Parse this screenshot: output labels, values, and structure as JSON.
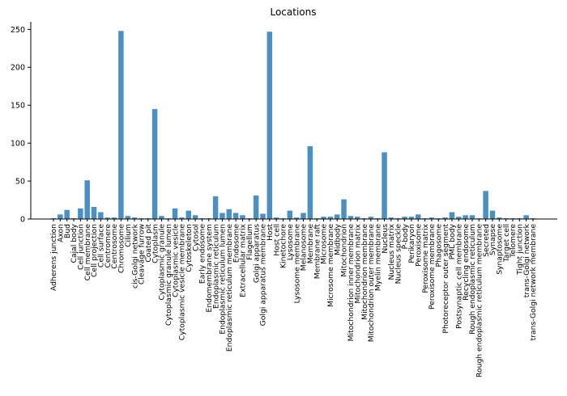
{
  "chart_data": {
    "type": "bar",
    "title": "Locations",
    "xlabel": "",
    "ylabel": "",
    "ylim": [
      0,
      260
    ],
    "yticks": [
      0,
      50,
      100,
      150,
      200,
      250
    ],
    "grid": false,
    "bar_color": "#4a90c2",
    "categories": [
      "Adherens junction",
      "Axon",
      "Bud",
      "Cajal body",
      "Cell junction",
      "Cell membrane",
      "Cell projection",
      "Cell surface",
      "Centromere",
      "Centrosome",
      "Chromosome",
      "Cilium",
      "cis-Golgi network",
      "Cleavage furrow",
      "Coated pit",
      "Cytoplasm",
      "Cytoplasmic granule",
      "Cytoplasmic granule lumen",
      "Cytoplasmic vesicle",
      "Cytoplasmic vesicle membrane",
      "Cytoskeleton",
      "Cytosol",
      "Early endosome",
      "Endomembrane system",
      "Endoplasmic reticulum",
      "Endoplasmic reticulum lumen",
      "Endoplasmic reticulum membrane",
      "Endosome",
      "Extracellular matrix",
      "Flagellum",
      "Golgi apparatus",
      "Golgi apparatus membrane",
      "Host",
      "Host cell",
      "Kinetochore",
      "Lysosome",
      "Lysosome membrane",
      "Melanosome",
      "Membrane",
      "Membrane raft",
      "Microsome",
      "Microsome membrane",
      "Midbody",
      "Mitochondrion",
      "Mitochondrion inner membrane",
      "Mitochondrion matrix",
      "Mitochondrion membrane",
      "Mitochondrion outer membrane",
      "Myelin membrane",
      "Nucleus",
      "Nucleus matrix",
      "Nucleus speckle",
      "P-body",
      "Perikaryon",
      "Peroxisome",
      "Peroxisome matrix",
      "Peroxisome membrane",
      "Phagosome",
      "Photoreceptor outer segment",
      "PML body",
      "Postsynaptic cell membrane",
      "Recycling endosome",
      "Rough endoplasmic reticulum",
      "Rough endoplasmic reticulum membrane",
      "Secreted",
      "Synapse",
      "Synaptosome",
      "Target cell",
      "Telomere",
      "Tight junction",
      "trans-Golgi network",
      "trans-Golgi network membrane"
    ],
    "values": [
      1,
      6,
      12,
      1,
      14,
      51,
      16,
      9,
      2,
      2,
      248,
      4,
      2,
      1,
      1,
      145,
      4,
      1,
      14,
      2,
      11,
      5,
      1,
      1,
      30,
      8,
      13,
      8,
      5,
      1,
      31,
      7,
      247,
      2,
      1,
      11,
      2,
      8,
      96,
      1,
      3,
      3,
      6,
      26,
      4,
      3,
      1,
      3,
      1,
      88,
      2,
      1,
      3,
      3,
      6,
      1,
      2,
      1,
      2,
      9,
      3,
      5,
      5,
      1,
      37,
      11,
      2,
      1,
      1,
      1,
      5,
      1
    ]
  }
}
